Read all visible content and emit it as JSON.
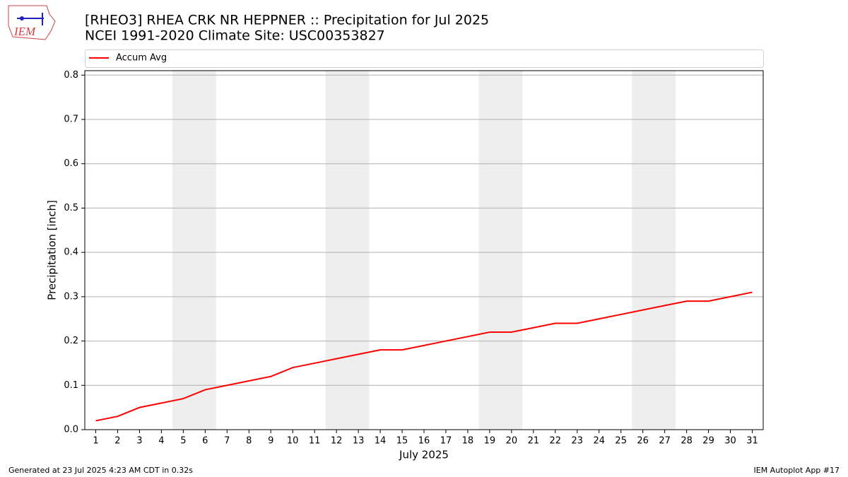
{
  "logo_text": "IEM",
  "footer_left": "Generated at 23 Jul 2025 4:23 AM CDT in 0.32s",
  "footer_right": "IEM Autoplot App #17",
  "chart_data": {
    "type": "line",
    "title": "[RHEO3] RHEA CRK NR HEPPNER :: Precipitation for Jul 2025",
    "subtitle": "NCEI 1991-2020 Climate Site: USC00353827",
    "x_label": "July 2025",
    "y_label": "Precipitation [inch]",
    "x": [
      1,
      2,
      3,
      4,
      5,
      6,
      7,
      8,
      9,
      10,
      11,
      12,
      13,
      14,
      15,
      16,
      17,
      18,
      19,
      20,
      21,
      22,
      23,
      24,
      25,
      26,
      27,
      28,
      29,
      30,
      31
    ],
    "series": [
      {
        "name": "Accum Avg",
        "color": "#ff0000",
        "values": [
          0.02,
          0.03,
          0.05,
          0.06,
          0.07,
          0.09,
          0.1,
          0.11,
          0.12,
          0.14,
          0.15,
          0.16,
          0.17,
          0.18,
          0.18,
          0.19,
          0.2,
          0.21,
          0.22,
          0.22,
          0.23,
          0.24,
          0.24,
          0.25,
          0.26,
          0.27,
          0.28,
          0.29,
          0.29,
          0.3,
          0.31
        ]
      }
    ],
    "shaded_spans": [
      [
        4.5,
        6.5
      ],
      [
        11.5,
        13.5
      ],
      [
        18.5,
        20.5
      ],
      [
        25.5,
        27.5
      ]
    ],
    "shade_color": "#eeeeee",
    "xlim": [
      0.5,
      31.5
    ],
    "xticks": [
      1,
      2,
      3,
      4,
      5,
      6,
      7,
      8,
      9,
      10,
      11,
      12,
      13,
      14,
      15,
      16,
      17,
      18,
      19,
      20,
      21,
      22,
      23,
      24,
      25,
      26,
      27,
      28,
      29,
      30,
      31
    ],
    "ylim": [
      0,
      0.81
    ],
    "yticks": [
      {
        "value": 0,
        "label": "0.0"
      },
      0.1,
      0.2,
      0.3,
      0.4,
      0.5,
      0.6,
      0.7,
      0.8
    ],
    "grid": true,
    "legend": "top"
  }
}
